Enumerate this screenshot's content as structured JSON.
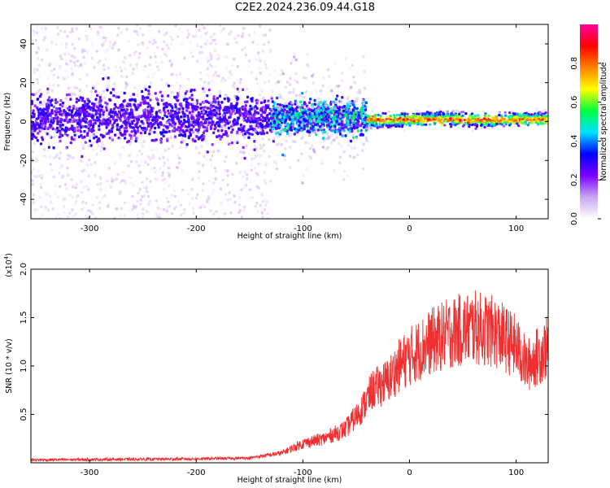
{
  "title": "C2E2.2024.236.09.44.G18",
  "chart_data": [
    {
      "type": "heatmap",
      "xlabel": "Height of straight line (km)",
      "ylabel": "Frequency (Hz)",
      "xlim": [
        -355,
        130
      ],
      "ylim": [
        -50,
        50
      ],
      "xticks": [
        -300,
        -200,
        -100,
        0,
        100
      ],
      "yticks": [
        -40,
        -20,
        0,
        20,
        40
      ],
      "colorbar": {
        "label": "Normalized spectral amplitude",
        "range": [
          0.0,
          1.0
        ],
        "ticks": [
          "0.0",
          "0.2",
          "0.4",
          "0.6",
          "0.8"
        ],
        "colors": [
          "#ffffff",
          "#c8a8f0",
          "#7a00ff",
          "#0000ff",
          "#00e0ff",
          "#00ff40",
          "#ffff00",
          "#ff8000",
          "#ff0000",
          "#ff00a0"
        ]
      },
      "ridge": {
        "segments": [
          {
            "x": [
              -355,
              -130
            ],
            "center_hz": 2,
            "spread_hz": 45,
            "amplitude": 0.15
          },
          {
            "x": [
              -130,
              -40
            ],
            "center_hz": 2,
            "spread_hz": 10,
            "amplitude": 0.45
          },
          {
            "x": [
              -40,
              130
            ],
            "center_hz": 1,
            "spread_hz": 4,
            "amplitude": 0.85
          }
        ]
      }
    },
    {
      "type": "line",
      "xlabel": "Height of straight line (km)",
      "ylabel": "SNR (10 * v/v)",
      "scale_label": "(x10",
      "scale_exponent": "4",
      "scale_close": ")",
      "xlim": [
        -355,
        130
      ],
      "ylim": [
        0,
        2.0
      ],
      "xticks": [
        -300,
        -200,
        -100,
        0,
        100
      ],
      "yticks": [
        "0.5",
        "1.0",
        "1.5",
        "2.0"
      ],
      "color": "#f03030",
      "series": [
        {
          "x": [
            -355,
            -200,
            -150,
            -120,
            -100,
            -80,
            -60,
            -45,
            -35,
            -20,
            -10,
            0,
            20,
            40,
            60,
            80,
            100,
            110,
            120,
            130
          ],
          "y": [
            0.03,
            0.04,
            0.05,
            0.1,
            0.2,
            0.25,
            0.35,
            0.55,
            0.75,
            0.85,
            1.0,
            1.1,
            1.25,
            1.35,
            1.4,
            1.35,
            1.2,
            1.0,
            1.1,
            1.2
          ]
        }
      ]
    }
  ]
}
